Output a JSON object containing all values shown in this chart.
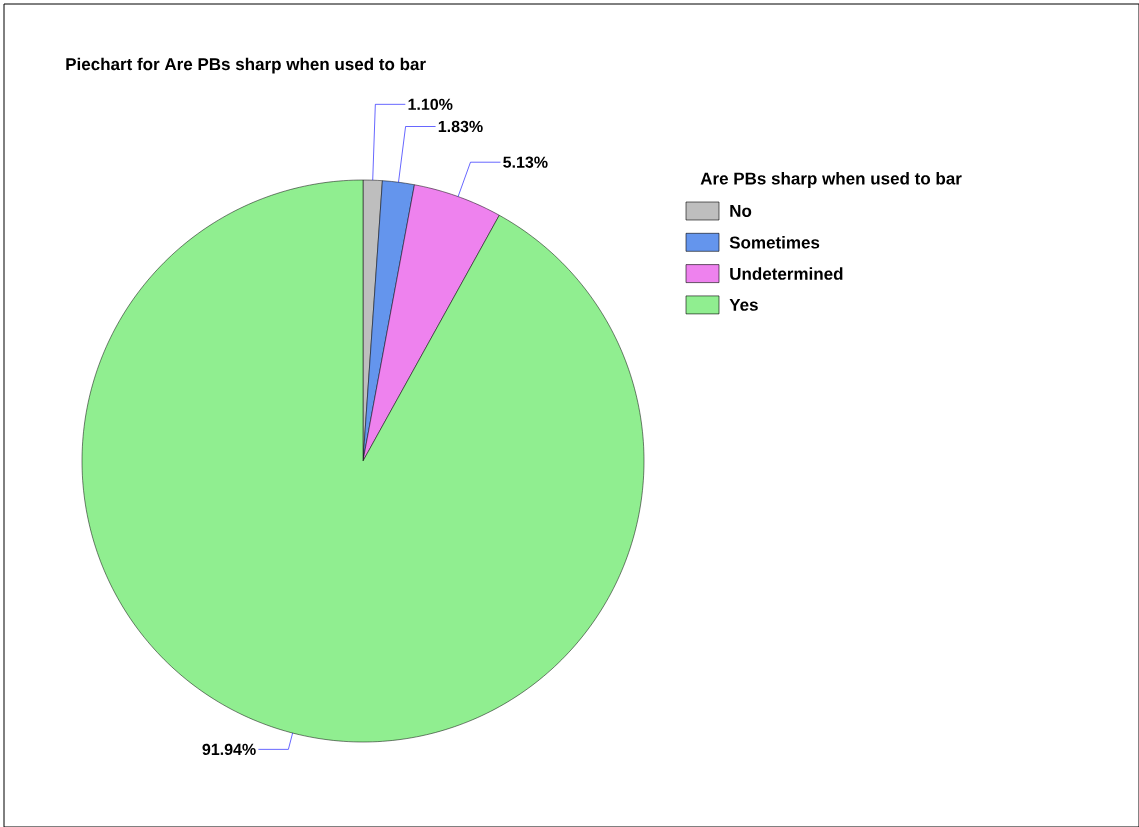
{
  "chart_data": {
    "type": "pie",
    "title": "Piechart for Are PBs sharp when used to bar",
    "legend_title": "Are PBs sharp when used to bar",
    "categories": [
      "No",
      "Sometimes",
      "Undetermined",
      "Yes"
    ],
    "values": [
      1.1,
      1.83,
      5.13,
      91.94
    ],
    "value_labels": [
      "1.10%",
      "1.83%",
      "5.13%",
      "91.94%"
    ],
    "colors": [
      "#bebebe",
      "#6495ed",
      "#ee82ee",
      "#90ee90"
    ],
    "legend": "right"
  }
}
